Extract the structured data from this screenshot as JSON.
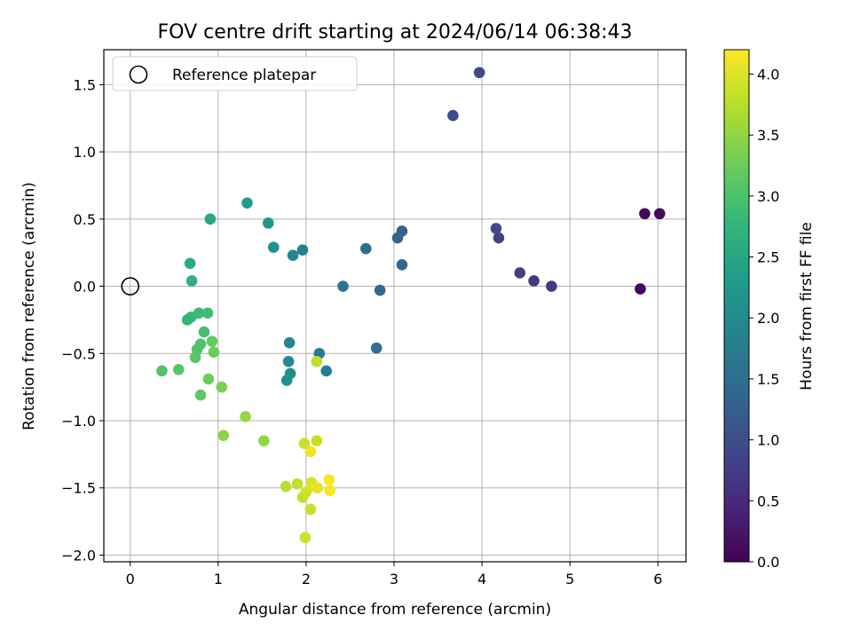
{
  "chart_data": {
    "type": "scatter",
    "title": "FOV centre drift starting at 2024/06/14 06:38:43",
    "xlabel": "Angular distance from reference (arcmin)",
    "ylabel": "Rotation from reference (arcmin)",
    "xlim": [
      -0.3,
      6.32
    ],
    "ylim": [
      -2.05,
      1.76
    ],
    "xticks": [
      0,
      1,
      2,
      3,
      4,
      5,
      6
    ],
    "yticks": [
      -2.0,
      -1.5,
      -1.0,
      -0.5,
      0.0,
      0.5,
      1.0,
      1.5
    ],
    "grid": true,
    "legend": {
      "placement": "top-left",
      "entries": [
        "Reference platepar"
      ]
    },
    "reference_point": {
      "x": 0,
      "y": 0
    },
    "colorbar": {
      "label": "Hours from first FF file",
      "range": [
        0.0,
        4.2
      ],
      "ticks": [
        0.0,
        0.5,
        1.0,
        1.5,
        2.0,
        2.5,
        3.0,
        3.5,
        4.0
      ],
      "colormap": "viridis"
    },
    "points": [
      {
        "x": 5.8,
        "y": -0.02,
        "hours": 0.05
      },
      {
        "x": 5.85,
        "y": 0.54,
        "hours": 0.07
      },
      {
        "x": 6.02,
        "y": 0.54,
        "hours": 0.1
      },
      {
        "x": 4.79,
        "y": 0.0,
        "hours": 0.7
      },
      {
        "x": 4.59,
        "y": 0.04,
        "hours": 0.75
      },
      {
        "x": 4.43,
        "y": 0.1,
        "hours": 0.8
      },
      {
        "x": 4.19,
        "y": 0.36,
        "hours": 0.85
      },
      {
        "x": 4.16,
        "y": 0.43,
        "hours": 0.9
      },
      {
        "x": 3.97,
        "y": 1.59,
        "hours": 0.95
      },
      {
        "x": 3.67,
        "y": 1.27,
        "hours": 1.0
      },
      {
        "x": 3.09,
        "y": 0.41,
        "hours": 1.3
      },
      {
        "x": 3.04,
        "y": 0.36,
        "hours": 1.35
      },
      {
        "x": 3.09,
        "y": 0.16,
        "hours": 1.4
      },
      {
        "x": 2.84,
        "y": -0.03,
        "hours": 1.45
      },
      {
        "x": 2.8,
        "y": -0.46,
        "hours": 1.5
      },
      {
        "x": 2.68,
        "y": 0.28,
        "hours": 1.55
      },
      {
        "x": 2.42,
        "y": 0.0,
        "hours": 1.65
      },
      {
        "x": 2.15,
        "y": -0.5,
        "hours": 1.75
      },
      {
        "x": 2.23,
        "y": -0.63,
        "hours": 1.8
      },
      {
        "x": 1.96,
        "y": 0.27,
        "hours": 1.85
      },
      {
        "x": 1.85,
        "y": 0.23,
        "hours": 1.9
      },
      {
        "x": 1.81,
        "y": -0.42,
        "hours": 1.95
      },
      {
        "x": 1.8,
        "y": -0.56,
        "hours": 2.0
      },
      {
        "x": 1.82,
        "y": -0.65,
        "hours": 2.05
      },
      {
        "x": 1.78,
        "y": -0.7,
        "hours": 2.1
      },
      {
        "x": 1.63,
        "y": 0.29,
        "hours": 2.15
      },
      {
        "x": 1.57,
        "y": 0.47,
        "hours": 2.2
      },
      {
        "x": 1.33,
        "y": 0.62,
        "hours": 2.3
      },
      {
        "x": 0.91,
        "y": 0.5,
        "hours": 2.5
      },
      {
        "x": 0.68,
        "y": 0.17,
        "hours": 2.6
      },
      {
        "x": 0.7,
        "y": 0.04,
        "hours": 2.7
      },
      {
        "x": 0.65,
        "y": -0.25,
        "hours": 2.75
      },
      {
        "x": 0.69,
        "y": -0.23,
        "hours": 2.8
      },
      {
        "x": 0.78,
        "y": -0.2,
        "hours": 2.85
      },
      {
        "x": 0.88,
        "y": -0.2,
        "hours": 2.9
      },
      {
        "x": 0.84,
        "y": -0.34,
        "hours": 2.95
      },
      {
        "x": 0.8,
        "y": -0.43,
        "hours": 3.0
      },
      {
        "x": 0.76,
        "y": -0.47,
        "hours": 3.05
      },
      {
        "x": 0.74,
        "y": -0.53,
        "hours": 3.1
      },
      {
        "x": 0.36,
        "y": -0.63,
        "hours": 3.05
      },
      {
        "x": 0.55,
        "y": -0.62,
        "hours": 3.1
      },
      {
        "x": 0.93,
        "y": -0.41,
        "hours": 3.2
      },
      {
        "x": 0.95,
        "y": -0.49,
        "hours": 3.25
      },
      {
        "x": 0.89,
        "y": -0.69,
        "hours": 3.25
      },
      {
        "x": 0.8,
        "y": -0.81,
        "hours": 3.15
      },
      {
        "x": 1.04,
        "y": -0.75,
        "hours": 3.35
      },
      {
        "x": 1.06,
        "y": -1.11,
        "hours": 3.45
      },
      {
        "x": 1.31,
        "y": -0.97,
        "hours": 3.55
      },
      {
        "x": 1.52,
        "y": -1.15,
        "hours": 3.5
      },
      {
        "x": 2.12,
        "y": -0.56,
        "hours": 3.8
      },
      {
        "x": 1.98,
        "y": -1.17,
        "hours": 3.85
      },
      {
        "x": 2.12,
        "y": -1.15,
        "hours": 3.85
      },
      {
        "x": 2.05,
        "y": -1.23,
        "hours": 4.1
      },
      {
        "x": 1.77,
        "y": -1.49,
        "hours": 3.75
      },
      {
        "x": 1.9,
        "y": -1.47,
        "hours": 3.8
      },
      {
        "x": 1.96,
        "y": -1.57,
        "hours": 3.85
      },
      {
        "x": 2.0,
        "y": -1.53,
        "hours": 3.9
      },
      {
        "x": 2.06,
        "y": -1.46,
        "hours": 3.95
      },
      {
        "x": 2.09,
        "y": -1.49,
        "hours": 4.0
      },
      {
        "x": 2.13,
        "y": -1.5,
        "hours": 4.05
      },
      {
        "x": 2.26,
        "y": -1.44,
        "hours": 4.15
      },
      {
        "x": 2.27,
        "y": -1.52,
        "hours": 4.15
      },
      {
        "x": 2.05,
        "y": -1.66,
        "hours": 3.85
      },
      {
        "x": 1.99,
        "y": -1.87,
        "hours": 3.9
      }
    ]
  }
}
